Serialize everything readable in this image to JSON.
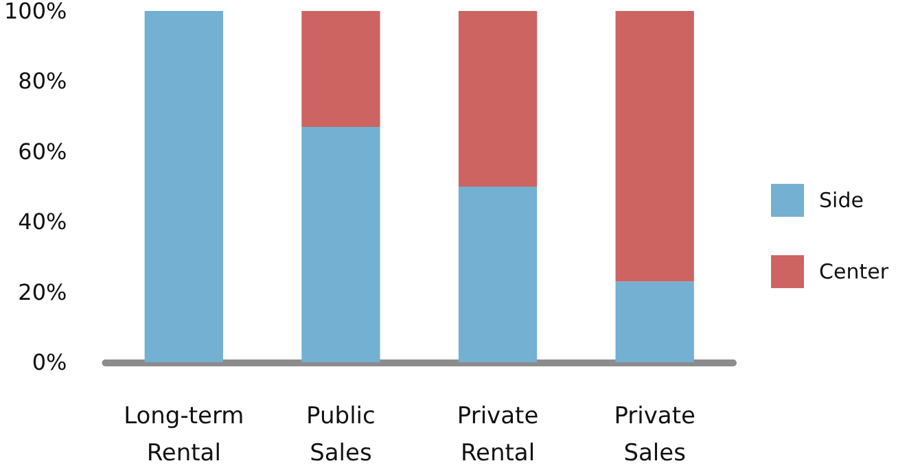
{
  "chart_data": {
    "type": "bar",
    "stacked": true,
    "categories": [
      "Long-term\nRental",
      "Public\nSales",
      "Private\nRental",
      "Private\nSales"
    ],
    "series": [
      {
        "name": "Side",
        "color": "#73b0d1",
        "values": [
          100,
          67,
          50,
          23
        ]
      },
      {
        "name": "Center",
        "color": "#cd6462",
        "values": [
          0,
          33,
          50,
          77
        ]
      }
    ],
    "ylim": [
      0,
      100
    ],
    "yticks": [
      {
        "value": 0,
        "label": "0%"
      },
      {
        "value": 20,
        "label": "20%"
      },
      {
        "value": 40,
        "label": "40%"
      },
      {
        "value": 60,
        "label": "60%"
      },
      {
        "value": 80,
        "label": "80%"
      },
      {
        "value": 100,
        "label": "100%"
      }
    ],
    "grid": false,
    "legend": "right"
  }
}
